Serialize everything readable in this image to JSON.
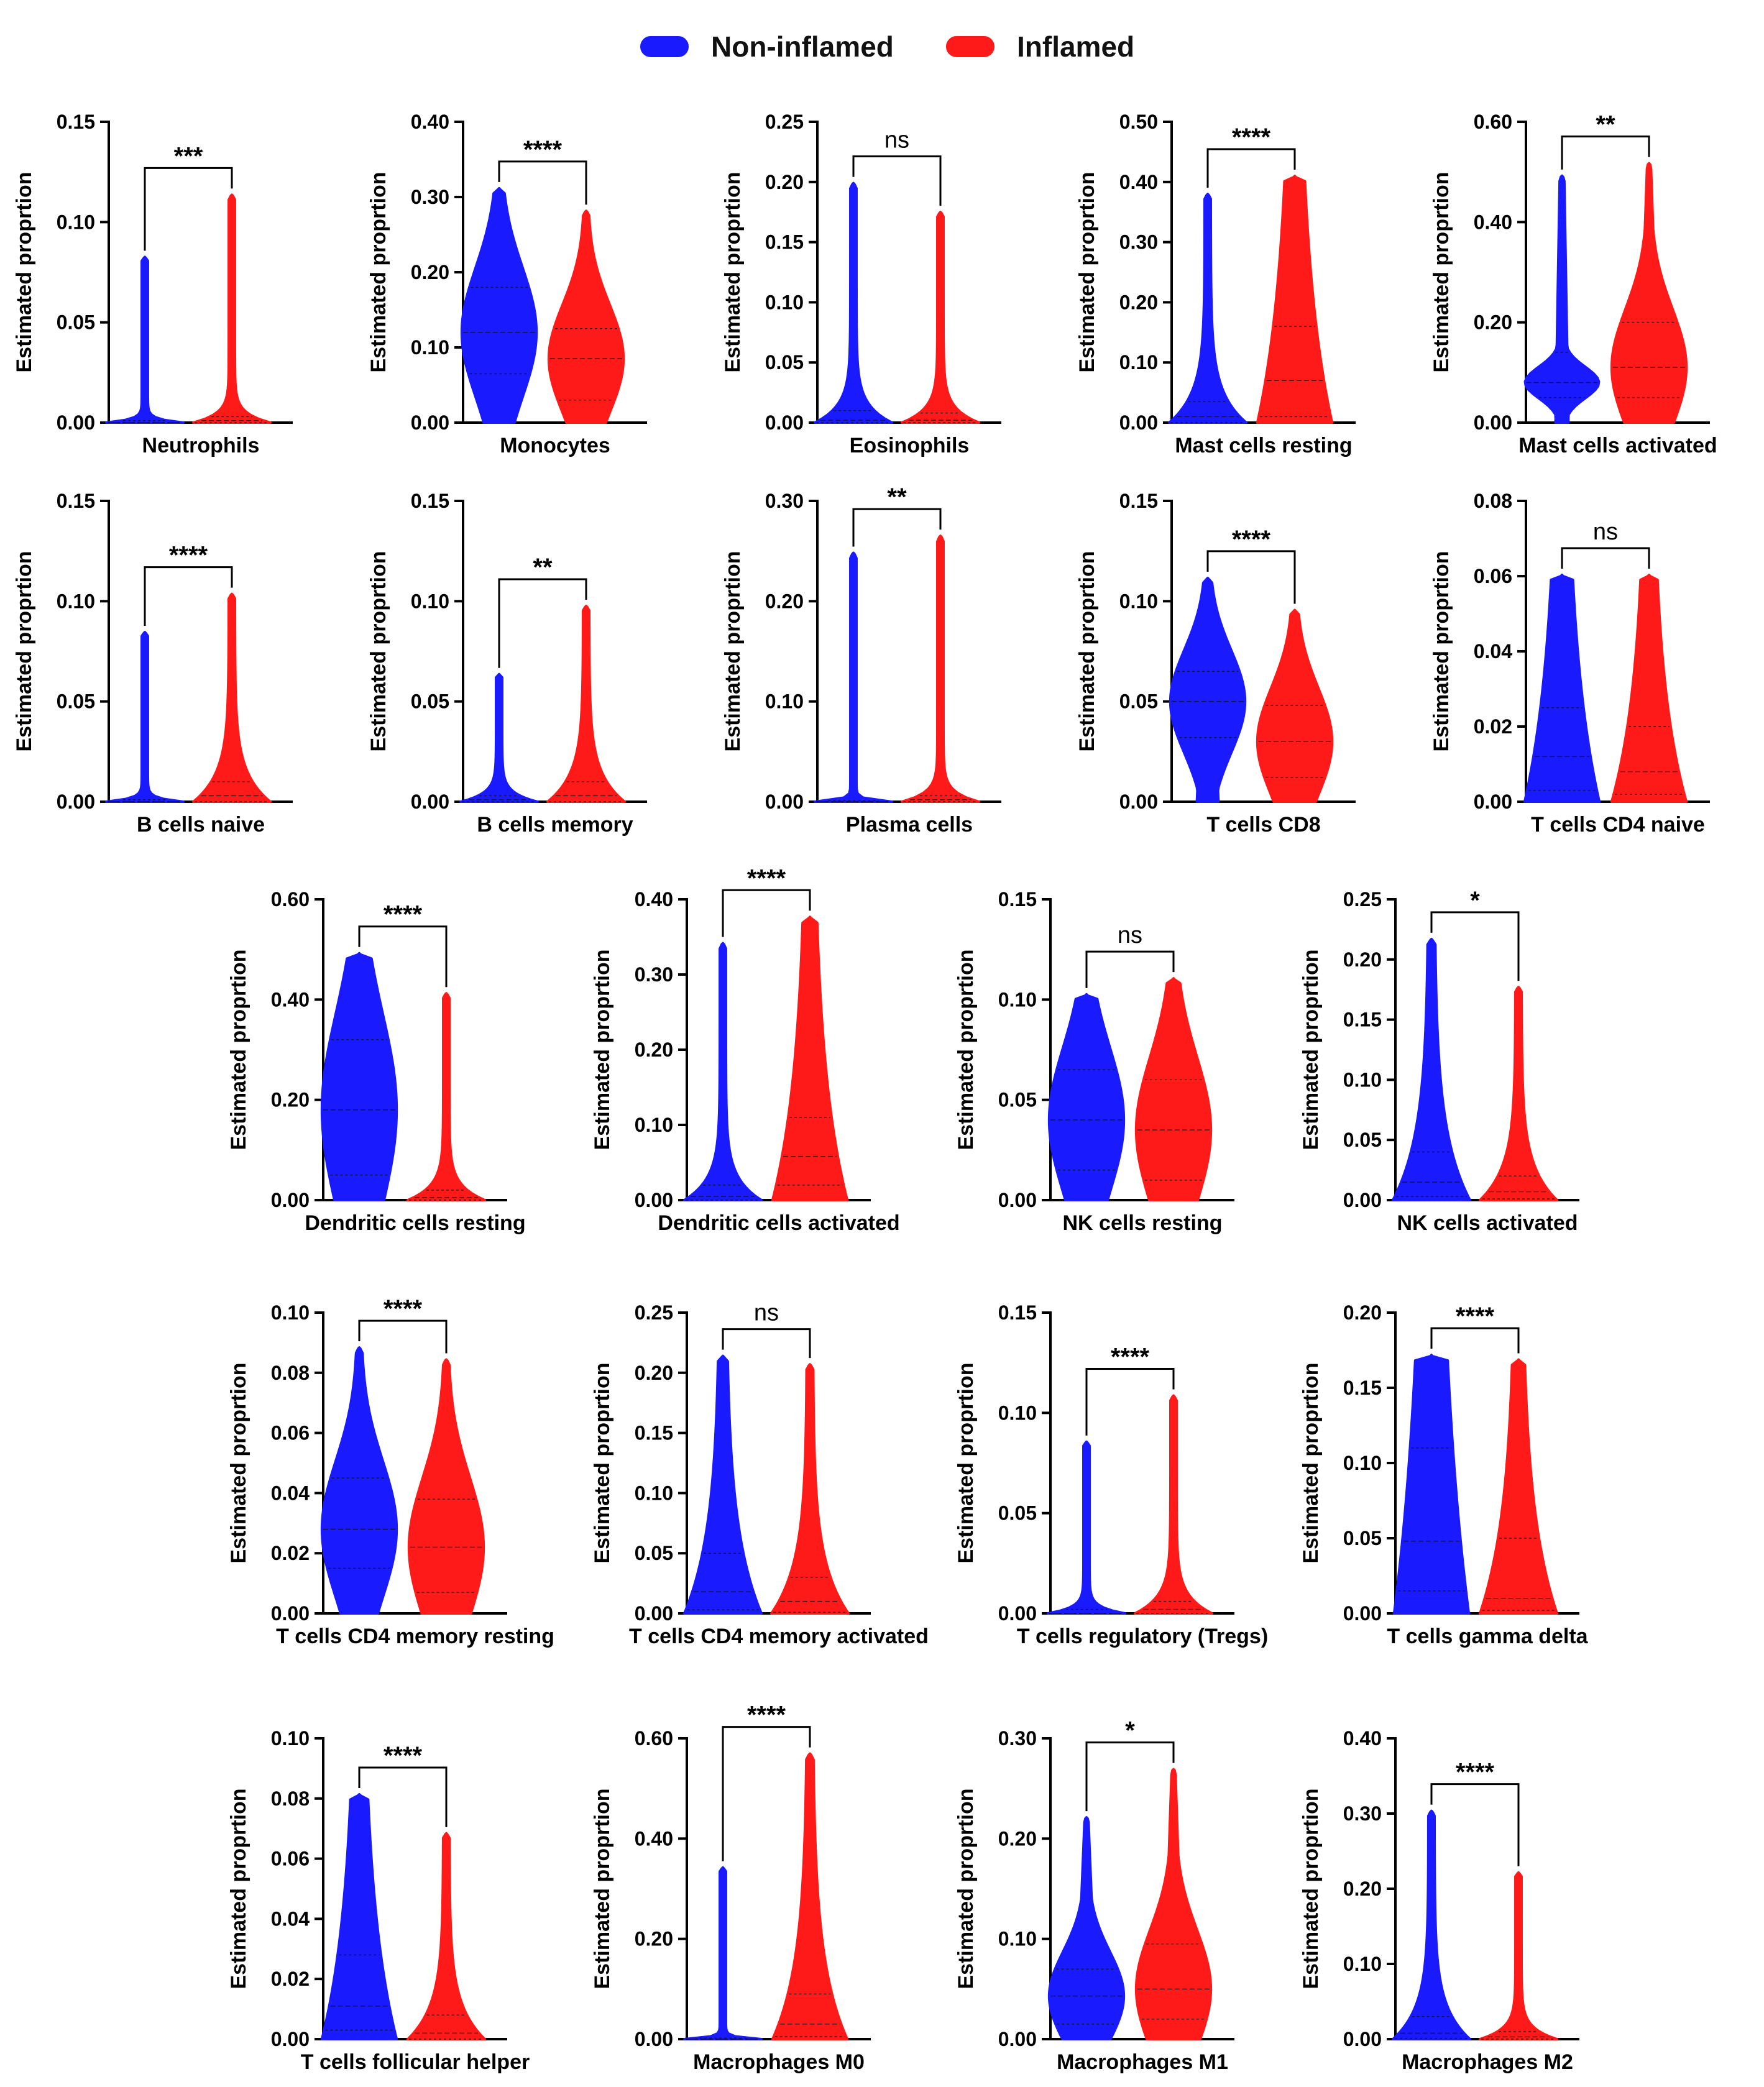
{
  "legend": [
    {
      "name": "Non-inflamed",
      "color": "#1a1aff"
    },
    {
      "name": "Inflamed",
      "color": "#ff1a1a"
    }
  ],
  "chart_data": [
    {
      "type": "violin",
      "category": "Neutrophils",
      "ylabel": "Estimated proprtion",
      "ylim": [
        0,
        0.15
      ],
      "ticks": [
        "0.00",
        "0.05",
        "0.10",
        "0.15"
      ],
      "significance": "***",
      "series": [
        {
          "name": "Non-inflamed",
          "max": 0.082,
          "median": 0.0,
          "q1": 0.0,
          "q3": 0.001,
          "shape": "spike"
        },
        {
          "name": "Inflamed",
          "max": 0.113,
          "median": 0.001,
          "q1": 0.0,
          "q3": 0.003,
          "shape": "spike"
        }
      ]
    },
    {
      "type": "violin",
      "category": "Monocytes",
      "ylabel": "Estimated proprtion",
      "ylim": [
        0,
        0.4
      ],
      "ticks": [
        "0.00",
        "0.10",
        "0.20",
        "0.30",
        "0.40"
      ],
      "significance": "****",
      "series": [
        {
          "name": "Non-inflamed",
          "max": 0.31,
          "median": 0.12,
          "q1": 0.065,
          "q3": 0.18,
          "shape": "wide"
        },
        {
          "name": "Inflamed",
          "max": 0.28,
          "median": 0.085,
          "q1": 0.03,
          "q3": 0.125,
          "shape": "wide"
        }
      ]
    },
    {
      "type": "violin",
      "category": "Eosinophils",
      "ylabel": "Estimated proprtion",
      "ylim": [
        0,
        0.25
      ],
      "ticks": [
        "0.00",
        "0.05",
        "0.10",
        "0.15",
        "0.20",
        "0.25"
      ],
      "significance": "ns",
      "series": [
        {
          "name": "Non-inflamed",
          "max": 0.198,
          "median": 0.002,
          "q1": 0.0,
          "q3": 0.01,
          "shape": "spike"
        },
        {
          "name": "Inflamed",
          "max": 0.174,
          "median": 0.002,
          "q1": 0.0,
          "q3": 0.008,
          "shape": "spike"
        }
      ]
    },
    {
      "type": "violin",
      "category": "Mast cells resting",
      "ylabel": "Estimated proprtion",
      "ylim": [
        0,
        0.5
      ],
      "ticks": [
        "0.00",
        "0.10",
        "0.20",
        "0.30",
        "0.40",
        "0.50"
      ],
      "significance": "****",
      "series": [
        {
          "name": "Non-inflamed",
          "max": 0.378,
          "median": 0.01,
          "q1": 0.0,
          "q3": 0.035,
          "shape": "spike"
        },
        {
          "name": "Inflamed",
          "max": 0.408,
          "median": 0.07,
          "q1": 0.01,
          "q3": 0.16,
          "shape": "tall"
        }
      ]
    },
    {
      "type": "violin",
      "category": "Mast cells activated",
      "ylabel": "Estimated proprtion",
      "ylim": [
        0,
        0.6
      ],
      "ticks": [
        "0.00",
        "0.20",
        "0.40",
        "0.60"
      ],
      "significance": "**",
      "series": [
        {
          "name": "Non-inflamed",
          "max": 0.49,
          "median": 0.08,
          "q1": 0.05,
          "q3": 0.14,
          "shape": "bulb"
        },
        {
          "name": "Inflamed",
          "max": 0.515,
          "median": 0.11,
          "q1": 0.05,
          "q3": 0.2,
          "shape": "wide"
        }
      ]
    },
    {
      "type": "violin",
      "category": "B cells naive",
      "ylabel": "Estimated proprtion",
      "ylim": [
        0,
        0.15
      ],
      "ticks": [
        "0.00",
        "0.05",
        "0.10",
        "0.15"
      ],
      "significance": "****",
      "series": [
        {
          "name": "Non-inflamed",
          "max": 0.084,
          "median": 0.0,
          "q1": 0.0,
          "q3": 0.001,
          "shape": "spike"
        },
        {
          "name": "Inflamed",
          "max": 0.103,
          "median": 0.003,
          "q1": 0.0,
          "q3": 0.01,
          "shape": "spike"
        }
      ]
    },
    {
      "type": "violin",
      "category": "B cells memory",
      "ylabel": "Estimated proprtion",
      "ylim": [
        0,
        0.15
      ],
      "ticks": [
        "0.00",
        "0.05",
        "0.10",
        "0.15"
      ],
      "significance": "**",
      "series": [
        {
          "name": "Non-inflamed",
          "max": 0.063,
          "median": 0.001,
          "q1": 0.0,
          "q3": 0.003,
          "shape": "spike"
        },
        {
          "name": "Inflamed",
          "max": 0.097,
          "median": 0.003,
          "q1": 0.0,
          "q3": 0.01,
          "shape": "spike"
        }
      ]
    },
    {
      "type": "violin",
      "category": "Plasma cells",
      "ylabel": "Estimated proprtion",
      "ylim": [
        0,
        0.3
      ],
      "ticks": [
        "0.00",
        "0.10",
        "0.20",
        "0.30"
      ],
      "significance": "**",
      "series": [
        {
          "name": "Non-inflamed",
          "max": 0.247,
          "median": 0.0,
          "q1": 0.0,
          "q3": 0.001,
          "shape": "spike"
        },
        {
          "name": "Inflamed",
          "max": 0.264,
          "median": 0.002,
          "q1": 0.0,
          "q3": 0.006,
          "shape": "spike"
        }
      ]
    },
    {
      "type": "violin",
      "category": "T cells CD8",
      "ylabel": "Estimated proprtion",
      "ylim": [
        0,
        0.15
      ],
      "ticks": [
        "0.00",
        "0.05",
        "0.10",
        "0.15"
      ],
      "significance": "****",
      "series": [
        {
          "name": "Non-inflamed",
          "max": 0.111,
          "median": 0.05,
          "q1": 0.032,
          "q3": 0.065,
          "shape": "wide"
        },
        {
          "name": "Inflamed",
          "max": 0.095,
          "median": 0.03,
          "q1": 0.012,
          "q3": 0.048,
          "shape": "wide"
        }
      ]
    },
    {
      "type": "violin",
      "category": "T cells CD4 naive",
      "ylabel": "Estimated proprtion",
      "ylim": [
        0,
        0.08
      ],
      "ticks": [
        "0.00",
        "0.02",
        "0.04",
        "0.06",
        "0.08"
      ],
      "significance": "ns",
      "series": [
        {
          "name": "Non-inflamed",
          "max": 0.06,
          "median": 0.012,
          "q1": 0.003,
          "q3": 0.025,
          "shape": "tall"
        },
        {
          "name": "Inflamed",
          "max": 0.06,
          "median": 0.008,
          "q1": 0.002,
          "q3": 0.02,
          "shape": "tall"
        }
      ]
    },
    {
      "type": "violin",
      "category": "Dendritic cells resting",
      "ylabel": "Estimated proprtion",
      "ylim": [
        0,
        0.6
      ],
      "ticks": [
        "0.00",
        "0.20",
        "0.40",
        "0.60"
      ],
      "significance": "****",
      "series": [
        {
          "name": "Non-inflamed",
          "max": 0.49,
          "median": 0.18,
          "q1": 0.05,
          "q3": 0.32,
          "shape": "wide"
        },
        {
          "name": "Inflamed",
          "max": 0.41,
          "median": 0.005,
          "q1": 0.0,
          "q3": 0.02,
          "shape": "spike"
        }
      ]
    },
    {
      "type": "violin",
      "category": "Dendritic cells activated",
      "ylabel": "Estimated proprtion",
      "ylim": [
        0,
        0.4
      ],
      "ticks": [
        "0.00",
        "0.10",
        "0.20",
        "0.30",
        "0.40"
      ],
      "significance": "****",
      "series": [
        {
          "name": "Non-inflamed",
          "max": 0.34,
          "median": 0.005,
          "q1": 0.0,
          "q3": 0.02,
          "shape": "spike"
        },
        {
          "name": "Inflamed",
          "max": 0.375,
          "median": 0.058,
          "q1": 0.02,
          "q3": 0.11,
          "shape": "tall"
        }
      ]
    },
    {
      "type": "violin",
      "category": "NK cells resting",
      "ylabel": "Estimated proprtion",
      "ylim": [
        0,
        0.15
      ],
      "ticks": [
        "0.00",
        "0.05",
        "0.10",
        "0.15"
      ],
      "significance": "ns",
      "series": [
        {
          "name": "Non-inflamed",
          "max": 0.102,
          "median": 0.04,
          "q1": 0.015,
          "q3": 0.065,
          "shape": "wide"
        },
        {
          "name": "Inflamed",
          "max": 0.11,
          "median": 0.035,
          "q1": 0.01,
          "q3": 0.06,
          "shape": "wide"
        }
      ]
    },
    {
      "type": "violin",
      "category": "NK cells activated",
      "ylabel": "Estimated proprtion",
      "ylim": [
        0,
        0.25
      ],
      "ticks": [
        "0.00",
        "0.05",
        "0.10",
        "0.15",
        "0.20",
        "0.25"
      ],
      "significance": "*",
      "series": [
        {
          "name": "Non-inflamed",
          "max": 0.216,
          "median": 0.015,
          "q1": 0.003,
          "q3": 0.04,
          "shape": "spike"
        },
        {
          "name": "Inflamed",
          "max": 0.176,
          "median": 0.007,
          "q1": 0.001,
          "q3": 0.02,
          "shape": "spike"
        }
      ]
    },
    {
      "type": "violin",
      "category": "T cells CD4 memory resting",
      "ylabel": "Estimated proprtion",
      "ylim": [
        0,
        0.1
      ],
      "ticks": [
        "0.00",
        "0.02",
        "0.04",
        "0.06",
        "0.08",
        "0.10"
      ],
      "significance": "****",
      "series": [
        {
          "name": "Non-inflamed",
          "max": 0.088,
          "median": 0.028,
          "q1": 0.015,
          "q3": 0.045,
          "shape": "wide"
        },
        {
          "name": "Inflamed",
          "max": 0.084,
          "median": 0.022,
          "q1": 0.007,
          "q3": 0.038,
          "shape": "wide"
        }
      ]
    },
    {
      "type": "violin",
      "category": "T cells CD4 memory activated",
      "ylabel": "Estimated proprtion",
      "ylim": [
        0,
        0.25
      ],
      "ticks": [
        "0.00",
        "0.05",
        "0.10",
        "0.15",
        "0.20",
        "0.25"
      ],
      "significance": "ns",
      "series": [
        {
          "name": "Non-inflamed",
          "max": 0.213,
          "median": 0.018,
          "q1": 0.003,
          "q3": 0.05,
          "shape": "spike"
        },
        {
          "name": "Inflamed",
          "max": 0.206,
          "median": 0.01,
          "q1": 0.001,
          "q3": 0.03,
          "shape": "spike"
        }
      ]
    },
    {
      "type": "violin",
      "category": "T cells regulatory (Tregs)",
      "ylabel": "Estimated proprtion",
      "ylim": [
        0,
        0.15
      ],
      "ticks": [
        "0.00",
        "0.05",
        "0.10",
        "0.15"
      ],
      "significance": "****",
      "series": [
        {
          "name": "Non-inflamed",
          "max": 0.085,
          "median": 0.0,
          "q1": 0.0,
          "q3": 0.002,
          "shape": "spike"
        },
        {
          "name": "Inflamed",
          "max": 0.108,
          "median": 0.002,
          "q1": 0.0,
          "q3": 0.006,
          "shape": "spike"
        }
      ]
    },
    {
      "type": "violin",
      "category": "T cells gamma delta",
      "ylabel": "Estimated proprtion",
      "ylim": [
        0,
        0.2
      ],
      "ticks": [
        "0.00",
        "0.05",
        "0.10",
        "0.15",
        "0.20"
      ],
      "significance": "****",
      "series": [
        {
          "name": "Non-inflamed",
          "max": 0.171,
          "median": 0.048,
          "q1": 0.015,
          "q3": 0.11,
          "shape": "tall"
        },
        {
          "name": "Inflamed",
          "max": 0.168,
          "median": 0.01,
          "q1": 0.002,
          "q3": 0.05,
          "shape": "spike"
        }
      ]
    },
    {
      "type": "violin",
      "category": "T cells follicular helper",
      "ylabel": "Estimated proprtion",
      "ylim": [
        0,
        0.1
      ],
      "ticks": [
        "0.00",
        "0.02",
        "0.04",
        "0.06",
        "0.08",
        "0.10"
      ],
      "significance": "****",
      "series": [
        {
          "name": "Non-inflamed",
          "max": 0.081,
          "median": 0.011,
          "q1": 0.003,
          "q3": 0.028,
          "shape": "tall"
        },
        {
          "name": "Inflamed",
          "max": 0.068,
          "median": 0.002,
          "q1": 0.0,
          "q3": 0.008,
          "shape": "spike"
        }
      ]
    },
    {
      "type": "violin",
      "category": "Macrophages M0",
      "ylabel": "Estimated proprtion",
      "ylim": [
        0,
        0.6
      ],
      "ticks": [
        "0.00",
        "0.20",
        "0.40",
        "0.60"
      ],
      "significance": "****",
      "series": [
        {
          "name": "Non-inflamed",
          "max": 0.34,
          "median": 0.0,
          "q1": 0.0,
          "q3": 0.002,
          "shape": "spike"
        },
        {
          "name": "Inflamed",
          "max": 0.567,
          "median": 0.03,
          "q1": 0.005,
          "q3": 0.09,
          "shape": "tall"
        }
      ]
    },
    {
      "type": "violin",
      "category": "Macrophages M1",
      "ylabel": "Estimated proprtion",
      "ylim": [
        0,
        0.3
      ],
      "ticks": [
        "0.00",
        "0.10",
        "0.20",
        "0.30"
      ],
      "significance": "*",
      "series": [
        {
          "name": "Non-inflamed",
          "max": 0.22,
          "median": 0.043,
          "q1": 0.015,
          "q3": 0.07,
          "shape": "wide"
        },
        {
          "name": "Inflamed",
          "max": 0.268,
          "median": 0.05,
          "q1": 0.02,
          "q3": 0.095,
          "shape": "wide"
        }
      ]
    },
    {
      "type": "violin",
      "category": "Macrophages M2",
      "ylabel": "Estimated proprtion",
      "ylim": [
        0,
        0.4
      ],
      "ticks": [
        "0.00",
        "0.10",
        "0.20",
        "0.30",
        "0.40"
      ],
      "significance": "****",
      "series": [
        {
          "name": "Non-inflamed",
          "max": 0.302,
          "median": 0.008,
          "q1": 0.001,
          "q3": 0.03,
          "shape": "spike"
        },
        {
          "name": "Inflamed",
          "max": 0.22,
          "median": 0.003,
          "q1": 0.0,
          "q3": 0.01,
          "shape": "spike"
        }
      ]
    }
  ]
}
